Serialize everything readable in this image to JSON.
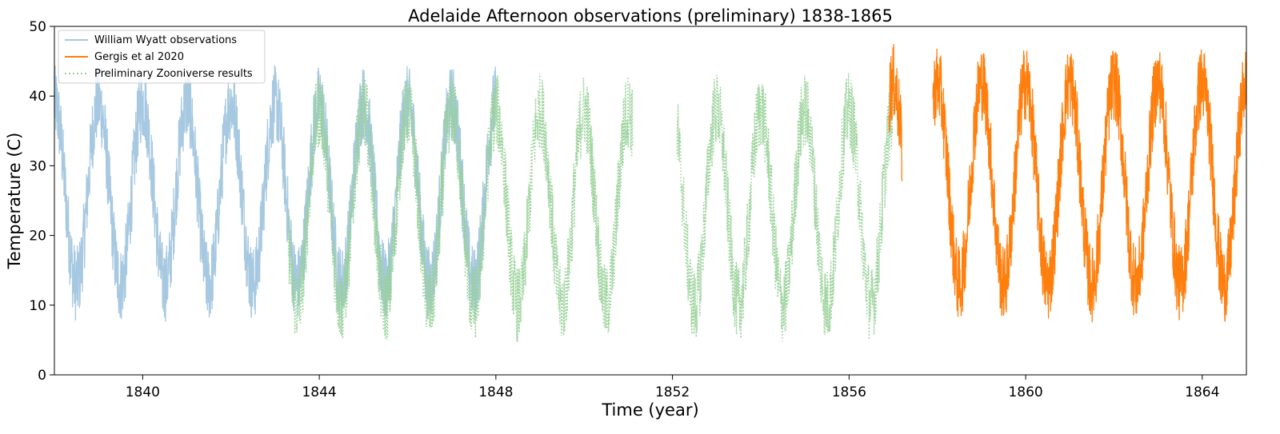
{
  "chart_data": {
    "type": "line",
    "title": "Adelaide Afternoon observations (preliminary) 1838-1865",
    "xlabel": "Time (year)",
    "ylabel": "Temperature (C)",
    "xlim": [
      1838.0,
      1865.0
    ],
    "ylim": [
      0,
      50
    ],
    "xticks": [
      1840,
      1844,
      1848,
      1852,
      1856,
      1860,
      1864
    ],
    "yticks": [
      0,
      10,
      20,
      30,
      40,
      50
    ],
    "grid": false,
    "legend_position": "top-left",
    "series": [
      {
        "name": "William Wyatt observations",
        "color": "#a6c8e0",
        "style": "solid",
        "segments": [
          [
            1838.0,
            1848.0
          ]
        ],
        "seasonal_min_approx": 13,
        "seasonal_max_approx": 39,
        "peaks": [
          [
            1838.1,
            38
          ],
          [
            1839.1,
            39
          ],
          [
            1840.0,
            41
          ],
          [
            1841.0,
            39
          ],
          [
            1842.0,
            40
          ],
          [
            1843.0,
            40
          ],
          [
            1844.0,
            38
          ],
          [
            1845.0,
            37
          ],
          [
            1846.1,
            35
          ],
          [
            1847.0,
            36
          ],
          [
            1848.0,
            38
          ]
        ],
        "troughs": [
          [
            1838.5,
            15
          ],
          [
            1839.5,
            13
          ],
          [
            1840.5,
            12
          ],
          [
            1841.5,
            13
          ],
          [
            1842.5,
            13
          ],
          [
            1843.5,
            14
          ],
          [
            1844.5,
            12
          ],
          [
            1845.5,
            11
          ],
          [
            1846.5,
            10
          ],
          [
            1847.5,
            12
          ]
        ]
      },
      {
        "name": "Gergis et al 2020",
        "color": "#ff7f0e",
        "style": "solid",
        "segments": [
          [
            1856.9,
            1857.2
          ],
          [
            1857.9,
            1865.0
          ]
        ],
        "seasonal_min_approx": 13,
        "seasonal_max_approx": 42,
        "peaks": [
          [
            1857.1,
            42
          ],
          [
            1858.0,
            46
          ],
          [
            1859.0,
            43
          ],
          [
            1860.0,
            43
          ],
          [
            1861.0,
            41
          ],
          [
            1862.1,
            46
          ],
          [
            1863.0,
            43
          ],
          [
            1864.0,
            41
          ],
          [
            1864.9,
            39
          ]
        ],
        "troughs": [
          [
            1858.5,
            12
          ],
          [
            1859.5,
            13
          ],
          [
            1860.5,
            13
          ],
          [
            1861.5,
            12
          ],
          [
            1862.5,
            12
          ],
          [
            1863.5,
            13
          ],
          [
            1864.5,
            12
          ]
        ]
      },
      {
        "name": "Preliminary Zooniverse results",
        "color": "#98d198",
        "style": "dotted",
        "segments": [
          [
            1843.3,
            1851.1
          ],
          [
            1852.1,
            1857.0
          ]
        ],
        "seasonal_min_approx": 10,
        "seasonal_max_approx": 38,
        "peaks": [
          [
            1844.0,
            38
          ],
          [
            1845.0,
            38
          ],
          [
            1846.0,
            41
          ],
          [
            1847.0,
            38
          ],
          [
            1848.0,
            42
          ],
          [
            1849.0,
            38
          ],
          [
            1850.0,
            36
          ],
          [
            1851.0,
            39
          ],
          [
            1853.0,
            40
          ],
          [
            1854.0,
            37
          ],
          [
            1855.0,
            42
          ],
          [
            1856.0,
            38
          ]
        ],
        "troughs": [
          [
            1843.6,
            9
          ],
          [
            1844.5,
            9
          ],
          [
            1845.5,
            9
          ],
          [
            1846.5,
            7
          ],
          [
            1847.5,
            10
          ],
          [
            1848.5,
            10
          ],
          [
            1849.5,
            11
          ],
          [
            1850.5,
            11
          ],
          [
            1852.6,
            9
          ],
          [
            1853.6,
            11
          ],
          [
            1854.5,
            10
          ],
          [
            1855.5,
            9
          ],
          [
            1856.5,
            10
          ]
        ]
      }
    ]
  }
}
